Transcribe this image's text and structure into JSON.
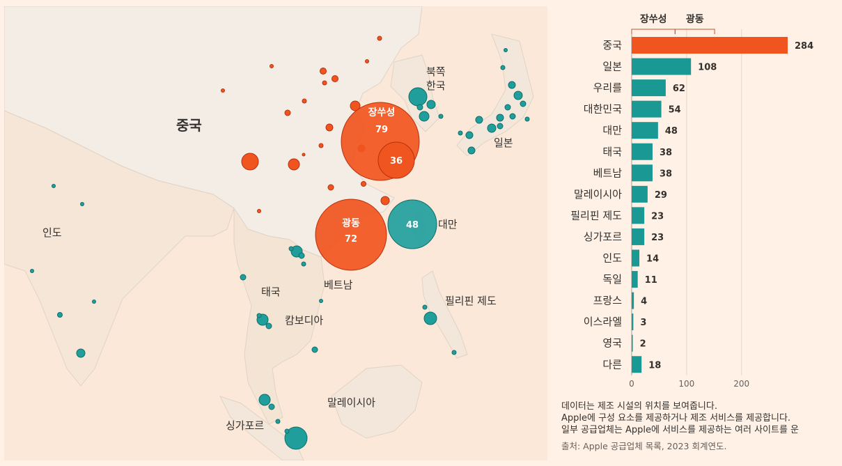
{
  "map": {
    "region_labels": {
      "china": "중국",
      "north_korea": "북쪽",
      "south_korea": "한국",
      "japan": "일본",
      "india": "인도",
      "thailand": "태국",
      "cambodia": "캄보디아",
      "vietnam": "베트남",
      "taiwan": "대만",
      "philippines": "필리핀 제도",
      "malaysia": "말레이시아",
      "singapore": "싱가포르"
    },
    "province_bubbles": [
      {
        "name": "장쑤성",
        "value": "79",
        "color": "#f1551f"
      },
      {
        "name": "광동",
        "value": "72",
        "color": "#f1551f"
      },
      {
        "name": "",
        "value": "36",
        "color": "#f1551f"
      },
      {
        "name": "",
        "value": "48",
        "color": "#22a09e"
      }
    ],
    "colors": {
      "china": "#f1551f",
      "other": "#1f9e9b",
      "stroke_china": "#b8300c",
      "stroke_other": "#0e6e6b"
    }
  },
  "chart_data": {
    "type": "bar",
    "orientation": "horizontal",
    "categories": [
      "중국",
      "일본",
      "우리를",
      "대한민국",
      "대만",
      "태국",
      "베트남",
      "말레이시아",
      "필리핀 제도",
      "싱가포르",
      "인도",
      "독일",
      "프랑스",
      "이스라엘",
      "영국",
      "다른"
    ],
    "values": [
      284,
      108,
      62,
      54,
      48,
      38,
      38,
      29,
      23,
      23,
      14,
      11,
      4,
      3,
      2,
      18
    ],
    "value_labels": [
      "284",
      "108",
      "62",
      "54",
      "48",
      "38",
      "38",
      "29",
      "23",
      "23",
      "14",
      "11",
      "4",
      "3",
      "2",
      "18"
    ],
    "x_ticks": [
      "0",
      "100",
      "200"
    ],
    "x_tick_values": [
      0,
      100,
      200
    ],
    "xlim": [
      0,
      284
    ],
    "bar_colors": {
      "highlight": "#f1551f",
      "default": "#1a9893"
    },
    "segment_labels": [
      "장쑤성",
      "광동"
    ],
    "segment_extents": [
      [
        0,
        79
      ],
      [
        79,
        151
      ]
    ]
  },
  "notes": {
    "line1": "데이터는 제조 시설의 위치를 보여줍니다.",
    "line2": "Apple에 구성 요소를 제공하거나 제조 서비스를 제공합니다.",
    "line3": "일부 공급업체는 Apple에 서비스를 제공하는 여러 사이트를 운",
    "source": "출처: Apple 공급업체 목록, 2023 회계연도."
  }
}
